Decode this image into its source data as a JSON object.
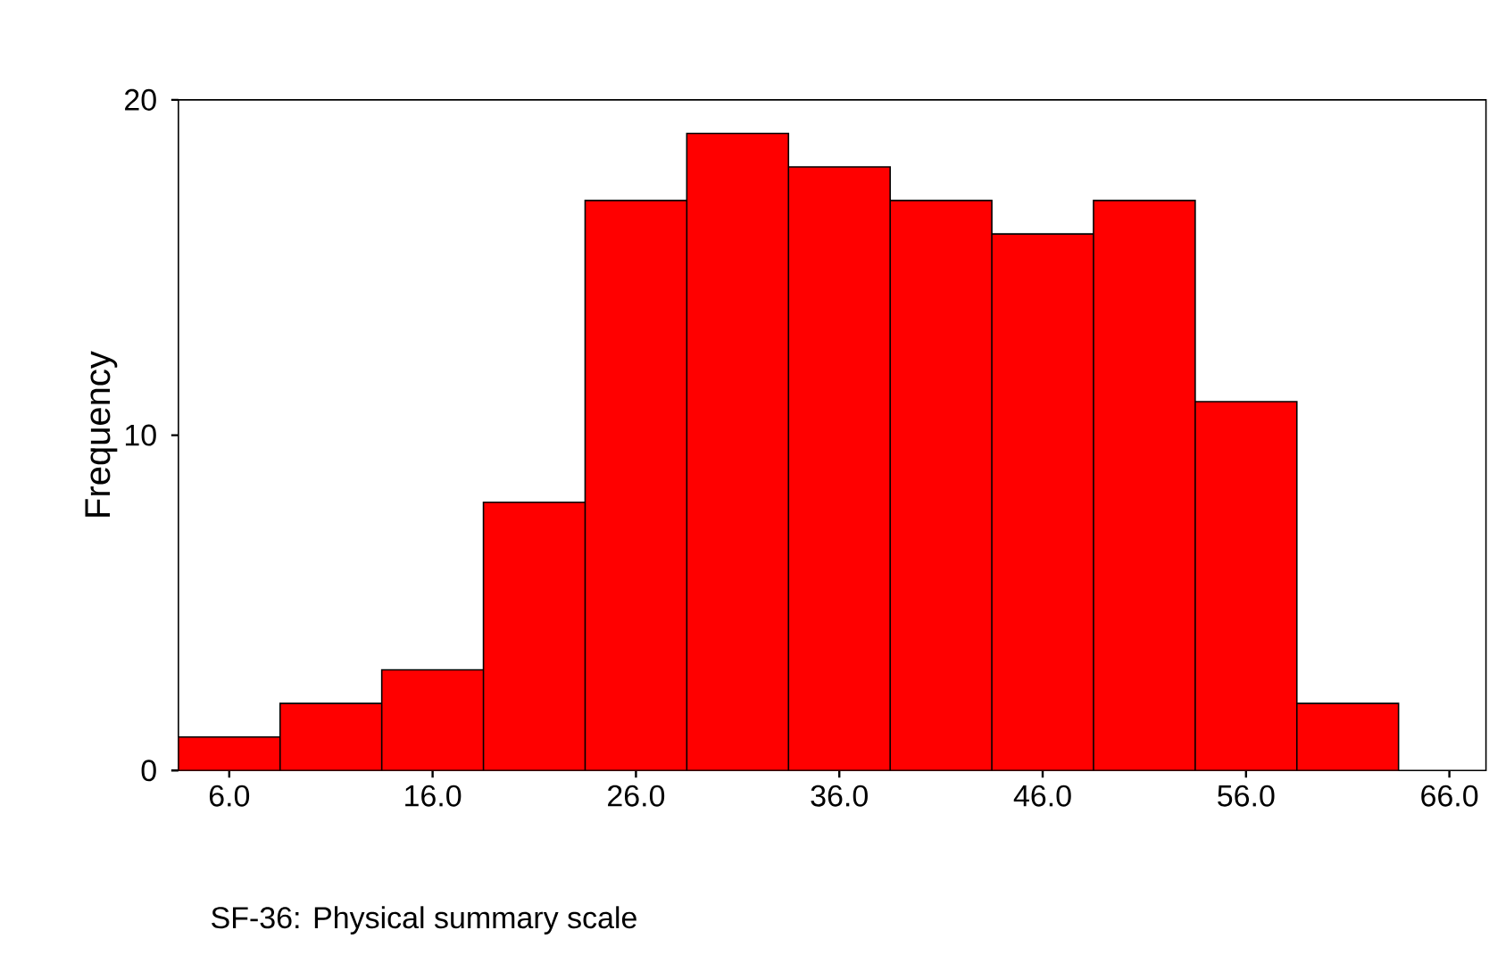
{
  "chart_data": {
    "type": "histogram",
    "xlabel": "SF-36: Physical summary scale",
    "ylabel": "Frequency",
    "bins": [
      3.5,
      8.5,
      13.5,
      18.5,
      23.5,
      28.5,
      33.5,
      38.5,
      43.5,
      48.5,
      53.5,
      58.5,
      63.5
    ],
    "values": [
      1,
      2,
      3,
      8,
      17,
      19,
      18,
      17,
      16,
      17,
      11,
      2
    ],
    "color": "#ff0000",
    "xlim": [
      3.5,
      67.8
    ],
    "ylim": [
      0,
      20
    ],
    "xticks": [
      {
        "value": 6,
        "label": "6.0"
      },
      {
        "value": 16,
        "label": "16.0"
      },
      {
        "value": 26,
        "label": "26.0"
      },
      {
        "value": 36,
        "label": "36.0"
      },
      {
        "value": 46,
        "label": "46.0"
      },
      {
        "value": 56,
        "label": "56.0"
      },
      {
        "value": 66,
        "label": "66.0"
      }
    ],
    "yticks": [
      0,
      10,
      20
    ],
    "grid": false
  }
}
